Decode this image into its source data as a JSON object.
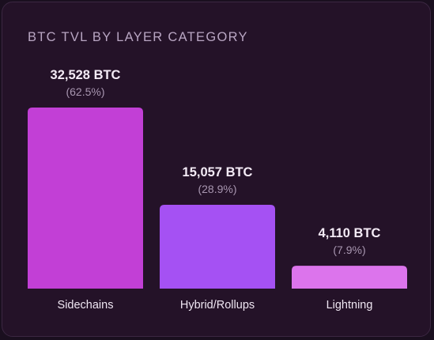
{
  "chart_data": {
    "type": "bar",
    "title": "BTC TVL BY LAYER CATEGORY",
    "categories": [
      "Sidechains",
      "Hybrid/Rollups",
      "Lightning"
    ],
    "values": [
      32528,
      15057,
      4110
    ],
    "value_labels": [
      "32,528 BTC",
      "15,057 BTC",
      "4,110 BTC"
    ],
    "percent_labels": [
      "(62.5%)",
      "(28.9%)",
      "(7.9%)"
    ],
    "colors": [
      "#c23fd6",
      "#a551f3",
      "#dc74ec"
    ],
    "ylim": [
      0,
      32528
    ],
    "grid": false,
    "legend": "none"
  }
}
